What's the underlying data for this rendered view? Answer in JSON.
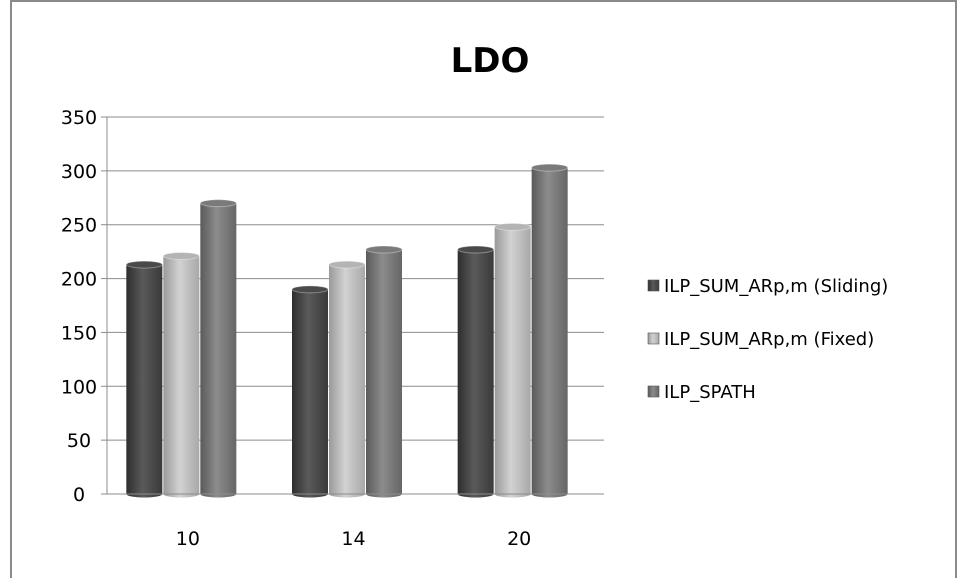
{
  "chart_data": {
    "type": "bar",
    "title": "LDO",
    "xlabel": "",
    "ylabel": "",
    "categories": [
      "10",
      "14",
      "20"
    ],
    "series": [
      {
        "name": "ILP_SUM_ARp,m (Sliding)",
        "values": [
          213,
          190,
          227
        ],
        "color": "#4a4a4a"
      },
      {
        "name": "ILP_SUM_ARp,m (Fixed)",
        "values": [
          221,
          213,
          248
        ],
        "color": "#b4b4b4"
      },
      {
        "name": "ILP_SPATH",
        "values": [
          270,
          227,
          303
        ],
        "color": "#7a7a7a"
      }
    ],
    "ylim": [
      0,
      350
    ],
    "yticks": [
      "0",
      "50",
      "100",
      "150",
      "200",
      "250",
      "300",
      "350"
    ],
    "grid": true,
    "legend": "right",
    "style": "3d-cylinder-bars"
  }
}
